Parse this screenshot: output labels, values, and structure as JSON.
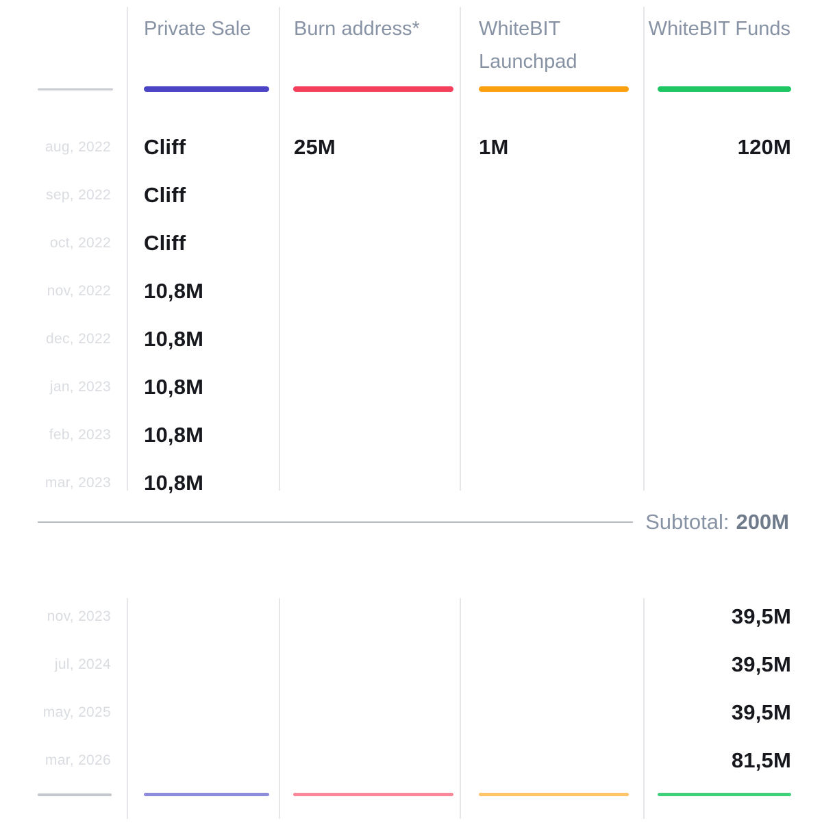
{
  "columns": [
    {
      "label": "Private Sale",
      "color": "#4B44C5"
    },
    {
      "label": "Burn address*",
      "color": "#F5405C"
    },
    {
      "label": "WhiteBIT Launchpad",
      "color": "#FBA00F"
    },
    {
      "label": "WhiteBIT Funds",
      "color": "#1EC763"
    }
  ],
  "top_rows": [
    {
      "date": "aug, 2022",
      "values": [
        "Cliff",
        "25M",
        "1M",
        "120M"
      ]
    },
    {
      "date": "sep, 2022",
      "values": [
        "Cliff",
        "",
        "",
        ""
      ]
    },
    {
      "date": "oct, 2022",
      "values": [
        "Cliff",
        "",
        "",
        ""
      ]
    },
    {
      "date": "nov, 2022",
      "values": [
        "10,8M",
        "",
        "",
        ""
      ]
    },
    {
      "date": "dec, 2022",
      "values": [
        "10,8M",
        "",
        "",
        ""
      ]
    },
    {
      "date": "jan, 2023",
      "values": [
        "10,8M",
        "",
        "",
        ""
      ]
    },
    {
      "date": "feb, 2023",
      "values": [
        "10,8M",
        "",
        "",
        ""
      ]
    },
    {
      "date": "mar, 2023",
      "values": [
        "10,8M",
        "",
        "",
        ""
      ]
    }
  ],
  "subtotal": {
    "label": "Subtotal:",
    "value": "200M"
  },
  "bottom_rows": [
    {
      "date": "nov, 2023",
      "values": [
        "",
        "",
        "",
        "39,5M"
      ]
    },
    {
      "date": "jul, 2024",
      "values": [
        "",
        "",
        "",
        "39,5M"
      ]
    },
    {
      "date": "may, 2025",
      "values": [
        "",
        "",
        "",
        "39,5M"
      ]
    },
    {
      "date": "mar, 2026",
      "values": [
        "",
        "",
        "",
        "81,5M"
      ]
    }
  ],
  "chart_data": {
    "type": "table",
    "categories": [
      "aug, 2022",
      "sep, 2022",
      "oct, 2022",
      "nov, 2022",
      "dec, 2022",
      "jan, 2023",
      "feb, 2023",
      "mar, 2023",
      "nov, 2023",
      "jul, 2024",
      "may, 2025",
      "mar, 2026"
    ],
    "series": [
      {
        "name": "Private Sale",
        "color": "#4B44C5",
        "values": [
          "Cliff",
          "Cliff",
          "Cliff",
          "10,8M",
          "10,8M",
          "10,8M",
          "10,8M",
          "10,8M",
          "",
          "",
          "",
          ""
        ]
      },
      {
        "name": "Burn address*",
        "color": "#F5405C",
        "values": [
          "25M",
          "",
          "",
          "",
          "",
          "",
          "",
          "",
          "",
          "",
          "",
          ""
        ]
      },
      {
        "name": "WhiteBIT Launchpad",
        "color": "#FBA00F",
        "values": [
          "1M",
          "",
          "",
          "",
          "",
          "",
          "",
          "",
          "",
          "",
          "",
          ""
        ]
      },
      {
        "name": "WhiteBIT Funds",
        "color": "#1EC763",
        "values": [
          "120M",
          "",
          "",
          "",
          "",
          "",
          "",
          "",
          "39,5M",
          "39,5M",
          "39,5M",
          "81,5M"
        ]
      }
    ],
    "subtotal_after_row": "mar, 2023",
    "subtotal_label": "Subtotal:",
    "subtotal_value": "200M",
    "legend_position": "top",
    "grid": "column-separators-only"
  }
}
